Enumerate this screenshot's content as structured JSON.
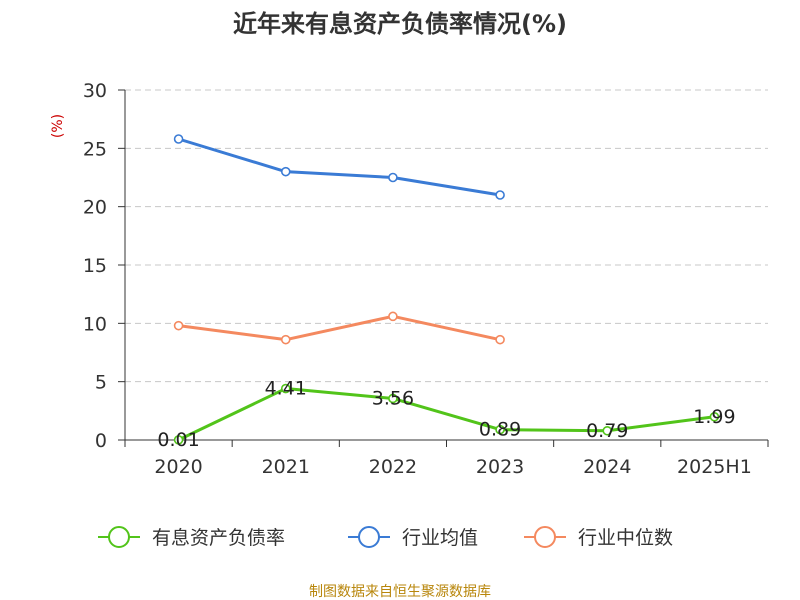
{
  "chart_data": {
    "type": "line",
    "title": "近年来有息资产负债率情况(%)",
    "ylabel": "(%)",
    "categories": [
      "2020",
      "2021",
      "2022",
      "2023",
      "2024",
      "2025H1"
    ],
    "ylim": [
      0,
      30
    ],
    "yticks": [
      0,
      5,
      10,
      15,
      20,
      25,
      30
    ],
    "grid": true,
    "legend_position": "bottom",
    "series": [
      {
        "name": "有息资产负债率",
        "color": "#52c41a",
        "values": [
          0.01,
          4.41,
          3.56,
          0.89,
          0.79,
          1.99
        ],
        "labels": [
          "0.01",
          "4.41",
          "3.56",
          "0.89",
          "0.79",
          "1.99"
        ]
      },
      {
        "name": "行业均值",
        "color": "#3a7bd5",
        "values": [
          25.8,
          23.0,
          22.5,
          21.0,
          null,
          null
        ]
      },
      {
        "name": "行业中位数",
        "color": "#f4895f",
        "values": [
          9.8,
          8.6,
          10.6,
          8.6,
          null,
          null
        ]
      }
    ]
  },
  "source_note": "制图数据来自恒生聚源数据库"
}
